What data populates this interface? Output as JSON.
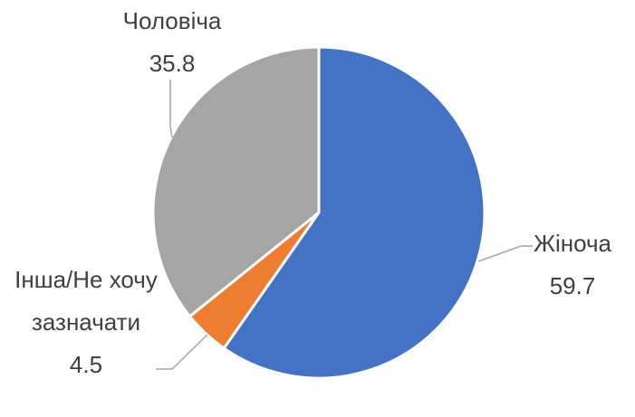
{
  "chart_data": {
    "type": "pie",
    "categories": [
      "Жіноча",
      "Інша/Не хочу зазначати",
      "Чоловіча"
    ],
    "values": [
      59.7,
      4.5,
      35.8
    ],
    "colors": [
      "#4472c4",
      "#ed7d31",
      "#a5a5a5"
    ]
  }
}
